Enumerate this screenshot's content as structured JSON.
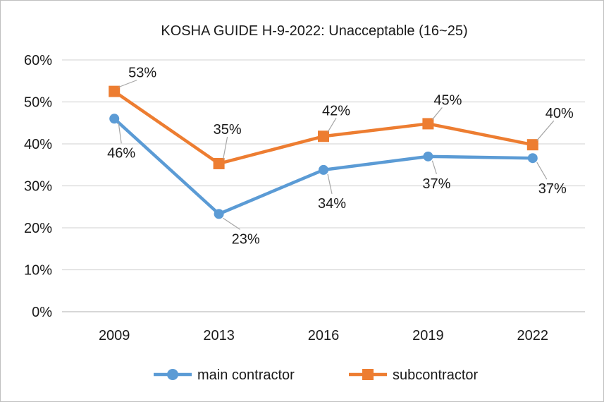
{
  "chart_data": {
    "type": "line",
    "title": "KOSHA GUIDE H-9-2022: Unacceptable (16~25)",
    "categories": [
      "2009",
      "2013",
      "2016",
      "2019",
      "2022"
    ],
    "y_ticks": [
      "0%",
      "10%",
      "20%",
      "30%",
      "40%",
      "50%",
      "60%"
    ],
    "ylim": [
      0,
      60
    ],
    "grid": true,
    "legend_position": "bottom",
    "series": [
      {
        "name": "main contractor",
        "values": [
          46,
          23.3,
          33.8,
          37,
          36.6
        ],
        "labels": [
          "46%",
          "23%",
          "34%",
          "37%",
          "37%"
        ],
        "color": "#5b9bd5",
        "marker": "circle"
      },
      {
        "name": "subcontractor",
        "values": [
          52.5,
          35.3,
          41.8,
          44.8,
          39.8
        ],
        "labels": [
          "53%",
          "35%",
          "42%",
          "45%",
          "40%"
        ],
        "color": "#ed7d31",
        "marker": "square"
      }
    ],
    "gridline_color": "#d9d9d9",
    "axis_color": "#bfbfbf"
  }
}
